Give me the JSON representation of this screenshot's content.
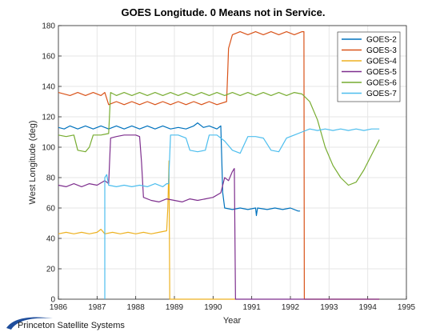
{
  "chart_data": {
    "type": "line",
    "title": "GOES Longitude. 0 Means not in Service.",
    "xlabel": "Year",
    "ylabel": "West Longitude (deg)",
    "xlim": [
      1986,
      1995
    ],
    "ylim": [
      0,
      180
    ],
    "xticks": [
      1986,
      1987,
      1988,
      1989,
      1990,
      1991,
      1992,
      1993,
      1994,
      1995
    ],
    "yticks": [
      0,
      20,
      40,
      60,
      80,
      100,
      120,
      140,
      160,
      180
    ],
    "grid": true,
    "legend_position": "top-right",
    "series": [
      {
        "name": "GOES-2",
        "color": "#0072BD",
        "points": [
          [
            1986,
            113
          ],
          [
            1986.15,
            112
          ],
          [
            1986.3,
            114
          ],
          [
            1986.5,
            112
          ],
          [
            1986.7,
            114
          ],
          [
            1986.9,
            112
          ],
          [
            1987.1,
            114
          ],
          [
            1987.3,
            112
          ],
          [
            1987.5,
            114
          ],
          [
            1987.7,
            112
          ],
          [
            1987.9,
            114
          ],
          [
            1988.1,
            112
          ],
          [
            1988.3,
            114
          ],
          [
            1988.5,
            112
          ],
          [
            1988.7,
            114
          ],
          [
            1988.9,
            112
          ],
          [
            1989.1,
            113
          ],
          [
            1989.3,
            112
          ],
          [
            1989.5,
            114
          ],
          [
            1989.6,
            116
          ],
          [
            1989.75,
            113
          ],
          [
            1989.9,
            114
          ],
          [
            1990.1,
            112
          ],
          [
            1990.2,
            114
          ],
          [
            1990.25,
            70
          ],
          [
            1990.3,
            60
          ],
          [
            1990.5,
            59
          ],
          [
            1990.7,
            60
          ],
          [
            1990.9,
            59
          ],
          [
            1991.1,
            60
          ],
          [
            1991.12,
            55
          ],
          [
            1991.15,
            60
          ],
          [
            1991.4,
            59
          ],
          [
            1991.6,
            60
          ],
          [
            1991.8,
            59
          ],
          [
            1992.0,
            60
          ],
          [
            1992.2,
            58
          ],
          [
            1992.25,
            58
          ]
        ]
      },
      {
        "name": "GOES-3",
        "color": "#D95319",
        "points": [
          [
            1986,
            136
          ],
          [
            1986.3,
            134
          ],
          [
            1986.5,
            136
          ],
          [
            1986.7,
            134
          ],
          [
            1986.9,
            136
          ],
          [
            1987.1,
            134
          ],
          [
            1987.2,
            136
          ],
          [
            1987.3,
            128
          ],
          [
            1987.5,
            130
          ],
          [
            1987.7,
            128
          ],
          [
            1987.9,
            130
          ],
          [
            1988.1,
            128
          ],
          [
            1988.3,
            130
          ],
          [
            1988.5,
            128
          ],
          [
            1988.7,
            130
          ],
          [
            1988.9,
            128
          ],
          [
            1989.1,
            130
          ],
          [
            1989.3,
            128
          ],
          [
            1989.5,
            130
          ],
          [
            1989.7,
            128
          ],
          [
            1989.9,
            130
          ],
          [
            1990.1,
            128
          ],
          [
            1990.35,
            130
          ],
          [
            1990.38,
            150
          ],
          [
            1990.4,
            165
          ],
          [
            1990.5,
            174
          ],
          [
            1990.7,
            176
          ],
          [
            1990.9,
            174
          ],
          [
            1991.1,
            176
          ],
          [
            1991.3,
            174
          ],
          [
            1991.5,
            176
          ],
          [
            1991.7,
            174
          ],
          [
            1991.9,
            176
          ],
          [
            1992.1,
            174
          ],
          [
            1992.3,
            176
          ],
          [
            1992.35,
            176
          ],
          [
            1992.36,
            0
          ],
          [
            1994.3,
            0
          ]
        ]
      },
      {
        "name": "GOES-4",
        "color": "#EDB120",
        "points": [
          [
            1986,
            43
          ],
          [
            1986.2,
            44
          ],
          [
            1986.4,
            43
          ],
          [
            1986.6,
            44
          ],
          [
            1986.8,
            43
          ],
          [
            1987.0,
            44
          ],
          [
            1987.1,
            46
          ],
          [
            1987.2,
            43
          ],
          [
            1987.4,
            44
          ],
          [
            1987.6,
            43
          ],
          [
            1987.8,
            44
          ],
          [
            1988.0,
            43
          ],
          [
            1988.2,
            44
          ],
          [
            1988.4,
            43
          ],
          [
            1988.6,
            44
          ],
          [
            1988.8,
            45
          ],
          [
            1988.83,
            60
          ],
          [
            1988.86,
            91
          ],
          [
            1988.88,
            0
          ],
          [
            1990.6,
            0
          ]
        ]
      },
      {
        "name": "GOES-5",
        "color": "#7E2F8E",
        "points": [
          [
            1986,
            75
          ],
          [
            1986.2,
            74
          ],
          [
            1986.4,
            76
          ],
          [
            1986.6,
            74
          ],
          [
            1986.8,
            76
          ],
          [
            1987.0,
            75
          ],
          [
            1987.2,
            78
          ],
          [
            1987.3,
            76
          ],
          [
            1987.35,
            106
          ],
          [
            1987.5,
            107
          ],
          [
            1987.7,
            108
          ],
          [
            1988.0,
            108
          ],
          [
            1988.1,
            107
          ],
          [
            1988.15,
            90
          ],
          [
            1988.2,
            67
          ],
          [
            1988.4,
            65
          ],
          [
            1988.6,
            64
          ],
          [
            1988.8,
            66
          ],
          [
            1989.0,
            65
          ],
          [
            1989.2,
            64
          ],
          [
            1989.4,
            66
          ],
          [
            1989.6,
            65
          ],
          [
            1989.8,
            66
          ],
          [
            1990.0,
            67
          ],
          [
            1990.2,
            70
          ],
          [
            1990.3,
            80
          ],
          [
            1990.4,
            78
          ],
          [
            1990.5,
            84
          ],
          [
            1990.55,
            86
          ],
          [
            1990.58,
            0
          ],
          [
            1994.3,
            0
          ]
        ]
      },
      {
        "name": "GOES-6",
        "color": "#77AC30",
        "points": [
          [
            1986,
            108
          ],
          [
            1986.2,
            107
          ],
          [
            1986.4,
            108
          ],
          [
            1986.5,
            98
          ],
          [
            1986.7,
            97
          ],
          [
            1986.8,
            100
          ],
          [
            1986.9,
            108
          ],
          [
            1987.1,
            108
          ],
          [
            1987.3,
            109
          ],
          [
            1987.35,
            136
          ],
          [
            1987.5,
            134
          ],
          [
            1987.7,
            136
          ],
          [
            1987.9,
            134
          ],
          [
            1988.1,
            136
          ],
          [
            1988.3,
            134
          ],
          [
            1988.5,
            136
          ],
          [
            1988.7,
            134
          ],
          [
            1988.9,
            136
          ],
          [
            1989.1,
            134
          ],
          [
            1989.3,
            136
          ],
          [
            1989.5,
            134
          ],
          [
            1989.7,
            136
          ],
          [
            1989.9,
            134
          ],
          [
            1990.1,
            136
          ],
          [
            1990.3,
            134
          ],
          [
            1990.5,
            136
          ],
          [
            1990.7,
            134
          ],
          [
            1990.9,
            136
          ],
          [
            1991.1,
            134
          ],
          [
            1991.3,
            136
          ],
          [
            1991.5,
            134
          ],
          [
            1991.7,
            136
          ],
          [
            1991.9,
            134
          ],
          [
            1992.1,
            136
          ],
          [
            1992.3,
            135
          ],
          [
            1992.5,
            130
          ],
          [
            1992.7,
            118
          ],
          [
            1992.9,
            100
          ],
          [
            1993.1,
            88
          ],
          [
            1993.3,
            80
          ],
          [
            1993.5,
            75
          ],
          [
            1993.7,
            77
          ],
          [
            1993.9,
            85
          ],
          [
            1994.1,
            95
          ],
          [
            1994.3,
            105
          ]
        ]
      },
      {
        "name": "GOES-7",
        "color": "#4DBEEE",
        "points": [
          [
            1987.2,
            0
          ],
          [
            1987.2,
            80
          ],
          [
            1987.25,
            82
          ],
          [
            1987.3,
            75
          ],
          [
            1987.5,
            74
          ],
          [
            1987.7,
            75
          ],
          [
            1987.9,
            74
          ],
          [
            1988.1,
            75
          ],
          [
            1988.3,
            74
          ],
          [
            1988.5,
            76
          ],
          [
            1988.7,
            74
          ],
          [
            1988.8,
            76
          ],
          [
            1988.85,
            76
          ],
          [
            1988.9,
            108
          ],
          [
            1989.1,
            108
          ],
          [
            1989.3,
            106
          ],
          [
            1989.4,
            98
          ],
          [
            1989.6,
            97
          ],
          [
            1989.8,
            98
          ],
          [
            1989.9,
            108
          ],
          [
            1990.1,
            108
          ],
          [
            1990.3,
            104
          ],
          [
            1990.5,
            98
          ],
          [
            1990.7,
            96
          ],
          [
            1990.9,
            107
          ],
          [
            1991.1,
            107
          ],
          [
            1991.3,
            106
          ],
          [
            1991.5,
            98
          ],
          [
            1991.7,
            97
          ],
          [
            1991.9,
            106
          ],
          [
            1992.1,
            108
          ],
          [
            1992.3,
            110
          ],
          [
            1992.5,
            112
          ],
          [
            1992.7,
            111
          ],
          [
            1992.9,
            112
          ],
          [
            1993.1,
            111
          ],
          [
            1993.3,
            112
          ],
          [
            1993.5,
            111
          ],
          [
            1993.7,
            112
          ],
          [
            1993.9,
            111
          ],
          [
            1994.1,
            112
          ],
          [
            1994.3,
            112
          ]
        ]
      }
    ]
  },
  "footer": {
    "logo_text": "Princeton Satellite Systems"
  }
}
